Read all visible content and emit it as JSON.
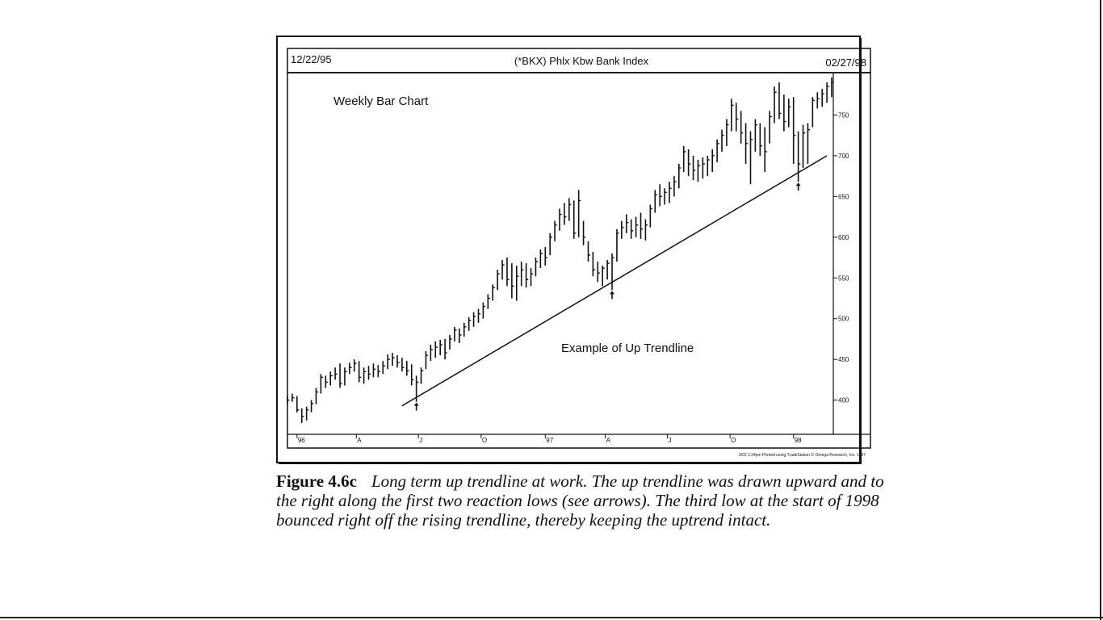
{
  "chart_data": {
    "type": "ohlc",
    "frequency": "weekly",
    "header": {
      "start_date": "12/22/95",
      "title": "(*BKX) Phlx Kbw Bank Index",
      "end_date": "02/27/98"
    },
    "inner_label": "Weekly Bar Chart",
    "annotation": "Example of Up Trendline",
    "footer_note": "3/02 1:34pm Printed using TradeStation © Omega Research, Inc. 1997",
    "ylim": [
      360,
      800
    ],
    "y_ticks": [
      400,
      450,
      500,
      550,
      600,
      650,
      700,
      750
    ],
    "x_start": "1995-12-22",
    "x_end": "1998-02-27",
    "x_ticks": [
      {
        "label": "96",
        "date": "1996-01-05"
      },
      {
        "label": "A",
        "date": "1996-04-01"
      },
      {
        "label": "J",
        "date": "1996-07-01"
      },
      {
        "label": "O",
        "date": "1996-10-01"
      },
      {
        "label": "97",
        "date": "1997-01-03"
      },
      {
        "label": "A",
        "date": "1997-04-01"
      },
      {
        "label": "J",
        "date": "1997-07-01"
      },
      {
        "label": "O",
        "date": "1997-10-01"
      },
      {
        "label": "98",
        "date": "1998-01-02"
      }
    ],
    "trendline": {
      "start": {
        "date": "1996-06-07",
        "value": 393
      },
      "end": {
        "date": "1998-02-20",
        "value": 700
      }
    },
    "reaction_lows": [
      {
        "date": "1996-06-28",
        "value": 398
      },
      {
        "date": "1997-04-11",
        "value": 535
      },
      {
        "date": "1998-01-09",
        "value": 668
      }
    ],
    "bars": [
      {
        "date": "1995-12-22",
        "h": 405,
        "l": 395,
        "c": 400
      },
      {
        "date": "1995-12-29",
        "h": 408,
        "l": 398,
        "c": 403
      },
      {
        "date": "1996-01-05",
        "h": 405,
        "l": 385,
        "c": 388
      },
      {
        "date": "1996-01-12",
        "h": 390,
        "l": 372,
        "c": 380
      },
      {
        "date": "1996-01-19",
        "h": 392,
        "l": 375,
        "c": 388
      },
      {
        "date": "1996-01-26",
        "h": 400,
        "l": 385,
        "c": 396
      },
      {
        "date": "1996-02-02",
        "h": 415,
        "l": 395,
        "c": 410
      },
      {
        "date": "1996-02-09",
        "h": 432,
        "l": 408,
        "c": 428
      },
      {
        "date": "1996-02-16",
        "h": 430,
        "l": 415,
        "c": 422
      },
      {
        "date": "1996-02-23",
        "h": 435,
        "l": 418,
        "c": 430
      },
      {
        "date": "1996-03-01",
        "h": 440,
        "l": 425,
        "c": 432
      },
      {
        "date": "1996-03-08",
        "h": 445,
        "l": 415,
        "c": 420
      },
      {
        "date": "1996-03-15",
        "h": 440,
        "l": 418,
        "c": 435
      },
      {
        "date": "1996-03-22",
        "h": 446,
        "l": 432,
        "c": 440
      },
      {
        "date": "1996-03-29",
        "h": 450,
        "l": 435,
        "c": 445
      },
      {
        "date": "1996-04-05",
        "h": 448,
        "l": 422,
        "c": 428
      },
      {
        "date": "1996-04-12",
        "h": 440,
        "l": 420,
        "c": 435
      },
      {
        "date": "1996-04-19",
        "h": 442,
        "l": 425,
        "c": 432
      },
      {
        "date": "1996-04-26",
        "h": 445,
        "l": 428,
        "c": 438
      },
      {
        "date": "1996-05-03",
        "h": 443,
        "l": 428,
        "c": 435
      },
      {
        "date": "1996-05-10",
        "h": 448,
        "l": 432,
        "c": 442
      },
      {
        "date": "1996-05-17",
        "h": 456,
        "l": 438,
        "c": 450
      },
      {
        "date": "1996-05-24",
        "h": 458,
        "l": 442,
        "c": 452
      },
      {
        "date": "1996-05-31",
        "h": 455,
        "l": 440,
        "c": 446
      },
      {
        "date": "1996-06-07",
        "h": 452,
        "l": 435,
        "c": 440
      },
      {
        "date": "1996-06-14",
        "h": 448,
        "l": 430,
        "c": 436
      },
      {
        "date": "1996-06-21",
        "h": 444,
        "l": 418,
        "c": 425
      },
      {
        "date": "1996-06-28",
        "h": 430,
        "l": 398,
        "c": 422
      },
      {
        "date": "1996-07-05",
        "h": 440,
        "l": 420,
        "c": 436
      },
      {
        "date": "1996-07-12",
        "h": 460,
        "l": 438,
        "c": 455
      },
      {
        "date": "1996-07-19",
        "h": 468,
        "l": 448,
        "c": 462
      },
      {
        "date": "1996-07-26",
        "h": 472,
        "l": 452,
        "c": 465
      },
      {
        "date": "1996-08-02",
        "h": 474,
        "l": 455,
        "c": 468
      },
      {
        "date": "1996-08-09",
        "h": 475,
        "l": 450,
        "c": 458
      },
      {
        "date": "1996-08-16",
        "h": 480,
        "l": 462,
        "c": 475
      },
      {
        "date": "1996-08-23",
        "h": 490,
        "l": 472,
        "c": 486
      },
      {
        "date": "1996-08-30",
        "h": 488,
        "l": 470,
        "c": 480
      },
      {
        "date": "1996-09-06",
        "h": 495,
        "l": 478,
        "c": 490
      },
      {
        "date": "1996-09-13",
        "h": 502,
        "l": 485,
        "c": 498
      },
      {
        "date": "1996-09-20",
        "h": 508,
        "l": 490,
        "c": 503
      },
      {
        "date": "1996-09-27",
        "h": 512,
        "l": 495,
        "c": 506
      },
      {
        "date": "1996-10-04",
        "h": 520,
        "l": 500,
        "c": 515
      },
      {
        "date": "1996-10-11",
        "h": 530,
        "l": 512,
        "c": 525
      },
      {
        "date": "1996-10-18",
        "h": 542,
        "l": 522,
        "c": 538
      },
      {
        "date": "1996-10-25",
        "h": 560,
        "l": 535,
        "c": 555
      },
      {
        "date": "1996-11-01",
        "h": 572,
        "l": 548,
        "c": 566
      },
      {
        "date": "1996-11-08",
        "h": 575,
        "l": 540,
        "c": 548
      },
      {
        "date": "1996-11-15",
        "h": 568,
        "l": 525,
        "c": 540
      },
      {
        "date": "1996-11-22",
        "h": 565,
        "l": 522,
        "c": 552
      },
      {
        "date": "1996-11-29",
        "h": 570,
        "l": 540,
        "c": 560
      },
      {
        "date": "1996-12-06",
        "h": 568,
        "l": 538,
        "c": 548
      },
      {
        "date": "1996-12-13",
        "h": 562,
        "l": 540,
        "c": 555
      },
      {
        "date": "1996-12-20",
        "h": 575,
        "l": 552,
        "c": 570
      },
      {
        "date": "1996-12-27",
        "h": 585,
        "l": 562,
        "c": 580
      },
      {
        "date": "1997-01-03",
        "h": 588,
        "l": 565,
        "c": 575
      },
      {
        "date": "1997-01-10",
        "h": 605,
        "l": 578,
        "c": 600
      },
      {
        "date": "1997-01-17",
        "h": 620,
        "l": 595,
        "c": 615
      },
      {
        "date": "1997-01-24",
        "h": 635,
        "l": 608,
        "c": 628
      },
      {
        "date": "1997-01-31",
        "h": 642,
        "l": 615,
        "c": 625
      },
      {
        "date": "1997-02-07",
        "h": 648,
        "l": 620,
        "c": 640
      },
      {
        "date": "1997-02-14",
        "h": 645,
        "l": 598,
        "c": 605
      },
      {
        "date": "1997-02-21",
        "h": 658,
        "l": 600,
        "c": 645
      },
      {
        "date": "1997-02-28",
        "h": 620,
        "l": 590,
        "c": 600
      },
      {
        "date": "1997-03-07",
        "h": 595,
        "l": 570,
        "c": 578
      },
      {
        "date": "1997-03-14",
        "h": 582,
        "l": 552,
        "c": 560
      },
      {
        "date": "1997-03-21",
        "h": 570,
        "l": 545,
        "c": 556
      },
      {
        "date": "1997-03-28",
        "h": 565,
        "l": 540,
        "c": 562
      },
      {
        "date": "1997-04-04",
        "h": 572,
        "l": 548,
        "c": 568
      },
      {
        "date": "1997-04-11",
        "h": 580,
        "l": 535,
        "c": 575
      },
      {
        "date": "1997-04-18",
        "h": 610,
        "l": 570,
        "c": 605
      },
      {
        "date": "1997-04-25",
        "h": 620,
        "l": 598,
        "c": 612
      },
      {
        "date": "1997-05-02",
        "h": 628,
        "l": 605,
        "c": 618
      },
      {
        "date": "1997-05-09",
        "h": 622,
        "l": 598,
        "c": 608
      },
      {
        "date": "1997-05-16",
        "h": 625,
        "l": 600,
        "c": 615
      },
      {
        "date": "1997-05-23",
        "h": 630,
        "l": 598,
        "c": 610
      },
      {
        "date": "1997-05-30",
        "h": 622,
        "l": 596,
        "c": 615
      },
      {
        "date": "1997-06-06",
        "h": 640,
        "l": 612,
        "c": 635
      },
      {
        "date": "1997-06-13",
        "h": 658,
        "l": 630,
        "c": 652
      },
      {
        "date": "1997-06-20",
        "h": 665,
        "l": 638,
        "c": 650
      },
      {
        "date": "1997-06-27",
        "h": 660,
        "l": 640,
        "c": 655
      },
      {
        "date": "1997-07-04",
        "h": 668,
        "l": 642,
        "c": 660
      },
      {
        "date": "1997-07-11",
        "h": 675,
        "l": 650,
        "c": 668
      },
      {
        "date": "1997-07-18",
        "h": 690,
        "l": 660,
        "c": 685
      },
      {
        "date": "1997-07-25",
        "h": 712,
        "l": 680,
        "c": 705
      },
      {
        "date": "1997-08-01",
        "h": 708,
        "l": 675,
        "c": 690
      },
      {
        "date": "1997-08-08",
        "h": 700,
        "l": 670,
        "c": 682
      },
      {
        "date": "1997-08-15",
        "h": 695,
        "l": 668,
        "c": 688
      },
      {
        "date": "1997-08-22",
        "h": 698,
        "l": 672,
        "c": 690
      },
      {
        "date": "1997-08-29",
        "h": 700,
        "l": 675,
        "c": 695
      },
      {
        "date": "1997-09-05",
        "h": 708,
        "l": 680,
        "c": 700
      },
      {
        "date": "1997-09-12",
        "h": 720,
        "l": 692,
        "c": 715
      },
      {
        "date": "1997-09-19",
        "h": 732,
        "l": 705,
        "c": 725
      },
      {
        "date": "1997-09-26",
        "h": 745,
        "l": 712,
        "c": 738
      },
      {
        "date": "1997-10-03",
        "h": 770,
        "l": 730,
        "c": 762
      },
      {
        "date": "1997-10-10",
        "h": 765,
        "l": 730,
        "c": 745
      },
      {
        "date": "1997-10-17",
        "h": 755,
        "l": 715,
        "c": 728
      },
      {
        "date": "1997-10-24",
        "h": 740,
        "l": 690,
        "c": 715
      },
      {
        "date": "1997-10-31",
        "h": 730,
        "l": 665,
        "c": 720
      },
      {
        "date": "1997-11-07",
        "h": 745,
        "l": 705,
        "c": 738
      },
      {
        "date": "1997-11-14",
        "h": 740,
        "l": 700,
        "c": 712
      },
      {
        "date": "1997-11-21",
        "h": 735,
        "l": 680,
        "c": 705
      },
      {
        "date": "1997-11-28",
        "h": 755,
        "l": 715,
        "c": 748
      },
      {
        "date": "1997-12-05",
        "h": 785,
        "l": 740,
        "c": 778
      },
      {
        "date": "1997-12-12",
        "h": 790,
        "l": 745,
        "c": 752
      },
      {
        "date": "1997-12-19",
        "h": 775,
        "l": 730,
        "c": 742
      },
      {
        "date": "1997-12-26",
        "h": 770,
        "l": 735,
        "c": 760
      },
      {
        "date": "1998-01-02",
        "h": 772,
        "l": 690,
        "c": 725
      },
      {
        "date": "1998-01-09",
        "h": 730,
        "l": 668,
        "c": 690
      },
      {
        "date": "1998-01-16",
        "h": 738,
        "l": 685,
        "c": 728
      },
      {
        "date": "1998-01-23",
        "h": 740,
        "l": 690,
        "c": 732
      },
      {
        "date": "1998-01-30",
        "h": 772,
        "l": 735,
        "c": 768
      },
      {
        "date": "1998-02-06",
        "h": 778,
        "l": 758,
        "c": 770
      },
      {
        "date": "1998-02-13",
        "h": 782,
        "l": 760,
        "c": 776
      },
      {
        "date": "1998-02-20",
        "h": 790,
        "l": 765,
        "c": 785
      },
      {
        "date": "1998-02-27",
        "h": 796,
        "l": 772,
        "c": 790
      }
    ]
  },
  "caption": {
    "label": "Figure 4.6c",
    "text": "Long term up trendline at work. The up trendline was drawn upward and to the right along the first two reaction lows (see arrows). The third low at the start of 1998 bounced right off the rising trendline, thereby keeping the uptrend intact."
  }
}
